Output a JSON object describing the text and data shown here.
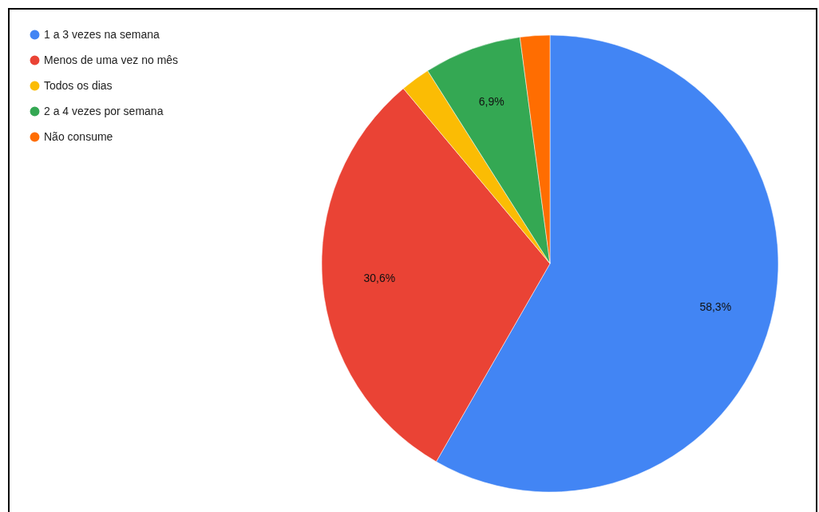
{
  "chart_data": {
    "type": "pie",
    "categories": [
      "1 a 3 vezes na semana",
      "Menos de uma vez no mês",
      "Todos os dias",
      "2 a 4 vezes por semana",
      "Não consume"
    ],
    "values": [
      58.3,
      30.6,
      2.1,
      6.9,
      2.1
    ],
    "colors": [
      "#4285f4",
      "#ea4335",
      "#fbbc04",
      "#34a853",
      "#ff6d01"
    ],
    "value_labels": [
      "58,3%",
      "30,6%",
      null,
      "6,9%",
      null
    ],
    "legend": "top left"
  }
}
